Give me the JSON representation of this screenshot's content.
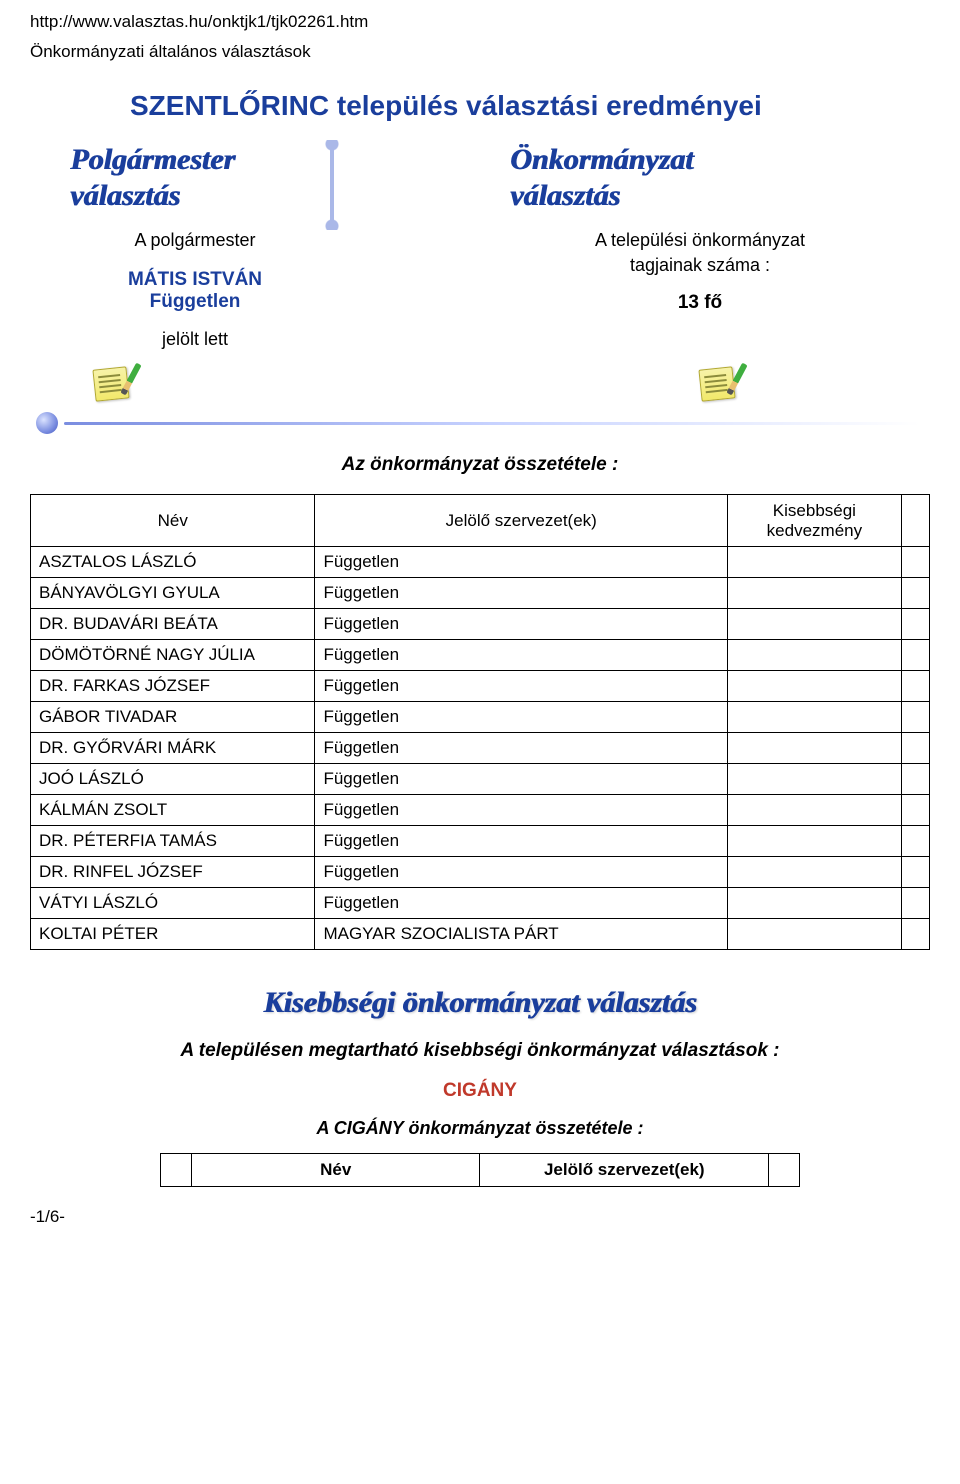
{
  "url": "http://www.valasztas.hu/onktjk1/tjk02261.htm",
  "sub_header": "Önkormányzati általános választások",
  "main_title": "SZENTLŐRINC település választási eredményei",
  "left_panel": {
    "heading_l1": "Polgármester",
    "heading_l2": "választás",
    "mayor_label": "A polgármester",
    "mayor_name": "MÁTIS ISTVÁN",
    "mayor_party": "Független",
    "became": "jelölt lett"
  },
  "right_panel": {
    "heading_l1": "Önkormányzat",
    "heading_l2": "választás",
    "council_label1": "A települési önkormányzat",
    "council_label2": "tagjainak száma :",
    "council_count": "13 fő"
  },
  "composition_title": "Az önkormányzat összetétele :",
  "members_header": {
    "name": "Név",
    "org": "Jelölő szervezet(ek)",
    "kisebb_l1": "Kisebbségi",
    "kisebb_l2": "kedvezmény"
  },
  "members": [
    {
      "name": "ASZTALOS LÁSZLÓ",
      "org": "Független"
    },
    {
      "name": "BÁNYAVÖLGYI GYULA",
      "org": "Független"
    },
    {
      "name": "DR. BUDAVÁRI BEÁTA",
      "org": "Független"
    },
    {
      "name": "DÖMÖTÖRNÉ NAGY JÚLIA",
      "org": "Független"
    },
    {
      "name": "DR. FARKAS JÓZSEF",
      "org": "Független"
    },
    {
      "name": "GÁBOR TIVADAR",
      "org": "Független"
    },
    {
      "name": "DR. GYŐRVÁRI MÁRK",
      "org": "Független"
    },
    {
      "name": "JOÓ LÁSZLÓ",
      "org": "Független"
    },
    {
      "name": "KÁLMÁN ZSOLT",
      "org": "Független"
    },
    {
      "name": "DR. PÉTERFIA TAMÁS",
      "org": "Független"
    },
    {
      "name": "DR. RINFEL JÓZSEF",
      "org": "Független"
    },
    {
      "name": "VÁTYI LÁSZLÓ",
      "org": "Független"
    },
    {
      "name": "KOLTAI PÉTER",
      "org": "MAGYAR SZOCIALISTA PÁRT"
    }
  ],
  "minority": {
    "heading": "Kisebbségi önkormányzat választás",
    "line": "A településen megtartható kisebbségi önkormányzat választások :",
    "group": "CIGÁNY",
    "comp": "A CIGÁNY önkormányzat összetétele :",
    "header_name": "Név",
    "header_org": "Jelölő szervezet(ek)"
  },
  "pagenum": "-1/6-",
  "colors": {
    "title_blue": "#1a3e9c",
    "red": "#c0392b"
  }
}
